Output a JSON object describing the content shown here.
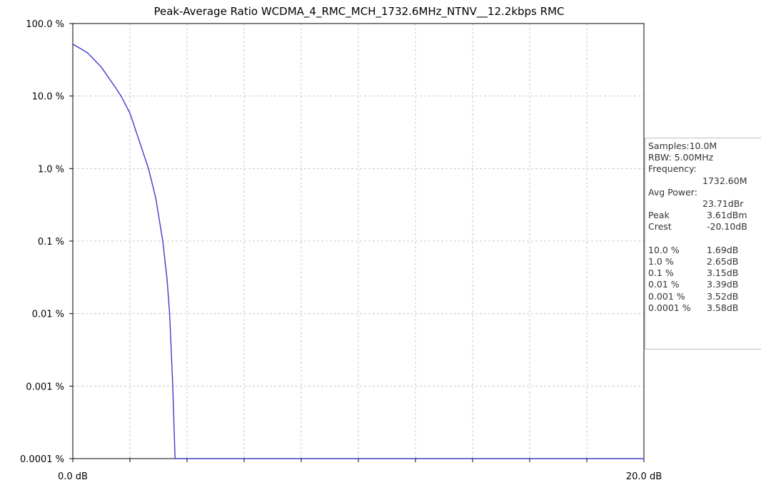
{
  "chart_data": {
    "type": "line",
    "title": "Peak-Average Ratio WCDMA_4_RMC_MCH_1732.6MHz_NTNV__12.2kbps RMC",
    "x_range": [
      0,
      20
    ],
    "y_scale": "log",
    "y_range_percent": [
      0.0001,
      100
    ],
    "x_tick_labels": [
      "0.0 dB",
      "20.0 dB"
    ],
    "y_tick_labels": [
      "100.0 %",
      "10.0 %",
      "1.0 %",
      "0.1 %",
      "0.01 %",
      "0.001 %",
      "0.0001 %"
    ],
    "grid": true,
    "series": [
      {
        "color": "#3b3bcc",
        "x_db": [
          0,
          0.5,
          1.0,
          1.5,
          1.69,
          2.0,
          2.65,
          2.9,
          3.15,
          3.3,
          3.39,
          3.5,
          3.58,
          3.61,
          20.0
        ],
        "y_percent": [
          52,
          40,
          25,
          13,
          10,
          5.8,
          1.0,
          0.4,
          0.1,
          0.03,
          0.01,
          0.001,
          0.0001,
          0.0001,
          0.0001
        ]
      }
    ]
  },
  "info_panel": {
    "lines": [
      {
        "label": "Samples:10.0M",
        "value": ""
      },
      {
        "label": "RBW: 5.00MHz",
        "value": ""
      },
      {
        "label": "Frequency:",
        "value": ""
      },
      {
        "label": "",
        "value": "1732.60M"
      },
      {
        "label": "Avg Power:",
        "value": ""
      },
      {
        "label": "",
        "value": "23.71dBr"
      },
      {
        "label": "Peak",
        "value": "3.61dBm"
      },
      {
        "label": "Crest",
        "value": "-20.10dB"
      },
      {
        "label": "",
        "value": ""
      },
      {
        "label": "10.0 %",
        "value": "1.69dB"
      },
      {
        "label": "1.0 %",
        "value": "2.65dB"
      },
      {
        "label": "0.1 %",
        "value": "3.15dB"
      },
      {
        "label": "0.01 %",
        "value": "3.39dB"
      },
      {
        "label": "0.001 %",
        "value": "3.52dB"
      },
      {
        "label": "0.0001 %",
        "value": "3.58dB"
      }
    ]
  }
}
